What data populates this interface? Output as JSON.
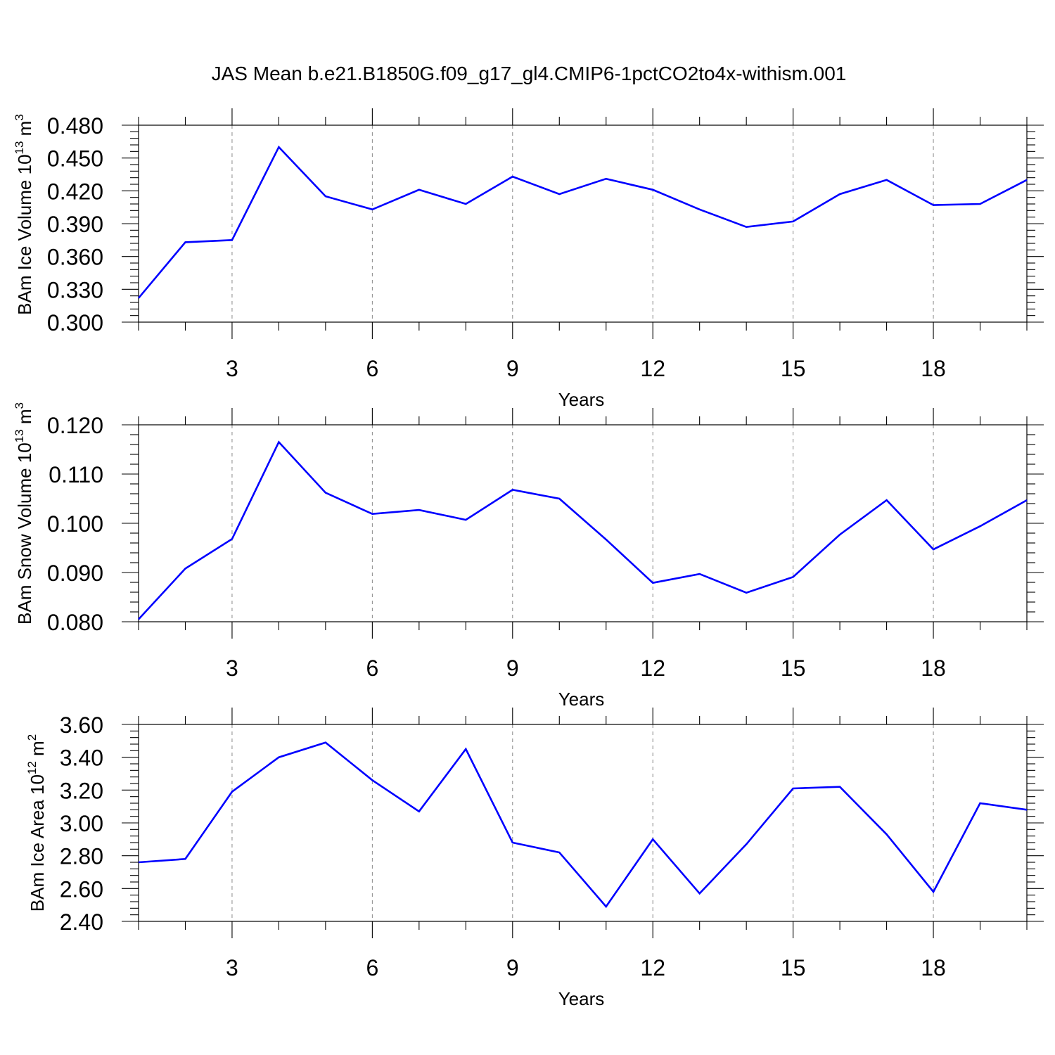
{
  "title": "JAS Mean b.e21.B1850G.f09_g17_gl4.CMIP6-1pctCO2to4x-withism.001",
  "colors": {
    "series": "#0000ff",
    "grid": "#888888",
    "axis": "#000000"
  },
  "chart_data": [
    {
      "type": "line",
      "name": "ice-volume",
      "ylabel": {
        "main": "BAm Ice Volume 10",
        "sup1": "13",
        "unit": " m",
        "sup2": "3"
      },
      "xlabel": "Years",
      "xlim": [
        1,
        20
      ],
      "ylim": [
        0.3,
        0.48
      ],
      "xticks": [
        3,
        6,
        9,
        12,
        15,
        18
      ],
      "xtick_labels": [
        "3",
        "6",
        "9",
        "12",
        "15",
        "18"
      ],
      "yticks": [
        0.3,
        0.33,
        0.36,
        0.39,
        0.42,
        0.45,
        0.48
      ],
      "ytick_labels": [
        "0.300",
        "0.330",
        "0.360",
        "0.390",
        "0.420",
        "0.450",
        "0.480"
      ],
      "x": [
        1,
        2,
        3,
        4,
        5,
        6,
        7,
        8,
        9,
        10,
        11,
        12,
        13,
        14,
        15,
        16,
        17,
        18,
        19,
        20
      ],
      "values": [
        0.322,
        0.373,
        0.375,
        0.46,
        0.415,
        0.403,
        0.421,
        0.408,
        0.433,
        0.417,
        0.431,
        0.421,
        0.403,
        0.387,
        0.392,
        0.417,
        0.43,
        0.407,
        0.408,
        0.43
      ]
    },
    {
      "type": "line",
      "name": "snow-volume",
      "ylabel": {
        "main": "BAm Snow Volume 10",
        "sup1": "13",
        "unit": " m",
        "sup2": "3"
      },
      "xlabel": "Years",
      "xlim": [
        1,
        20
      ],
      "ylim": [
        0.08,
        0.12
      ],
      "xticks": [
        3,
        6,
        9,
        12,
        15,
        18
      ],
      "xtick_labels": [
        "3",
        "6",
        "9",
        "12",
        "15",
        "18"
      ],
      "yticks": [
        0.08,
        0.09,
        0.1,
        0.11,
        0.12
      ],
      "ytick_labels": [
        "0.080",
        "0.090",
        "0.100",
        "0.110",
        "0.120"
      ],
      "x": [
        1,
        2,
        3,
        4,
        5,
        6,
        7,
        8,
        9,
        10,
        11,
        12,
        13,
        14,
        15,
        16,
        17,
        18,
        19,
        20
      ],
      "values": [
        0.0805,
        0.0908,
        0.0968,
        0.1165,
        0.1062,
        0.1019,
        0.1027,
        0.1007,
        0.1068,
        0.105,
        0.0967,
        0.0879,
        0.0897,
        0.0859,
        0.0891,
        0.0977,
        0.1047,
        0.0947,
        0.0994,
        0.1047
      ]
    },
    {
      "type": "line",
      "name": "ice-area",
      "ylabel": {
        "main": "BAm Ice Area 10",
        "sup1": "12",
        "unit": " m",
        "sup2": "2"
      },
      "xlabel": "Years",
      "xlim": [
        1,
        20
      ],
      "ylim": [
        2.4,
        3.6
      ],
      "xticks": [
        3,
        6,
        9,
        12,
        15,
        18
      ],
      "xtick_labels": [
        "3",
        "6",
        "9",
        "12",
        "15",
        "18"
      ],
      "yticks": [
        2.4,
        2.6,
        2.8,
        3.0,
        3.2,
        3.4,
        3.6
      ],
      "ytick_labels": [
        "2.40",
        "2.60",
        "2.80",
        "3.00",
        "3.20",
        "3.40",
        "3.60"
      ],
      "x": [
        1,
        2,
        3,
        4,
        5,
        6,
        7,
        8,
        9,
        10,
        11,
        12,
        13,
        14,
        15,
        16,
        17,
        18,
        19,
        20
      ],
      "values": [
        2.76,
        2.78,
        3.19,
        3.4,
        3.49,
        3.26,
        3.07,
        3.45,
        2.88,
        2.82,
        2.49,
        2.9,
        2.57,
        2.87,
        3.21,
        3.22,
        2.93,
        2.58,
        3.12,
        3.08
      ]
    }
  ]
}
